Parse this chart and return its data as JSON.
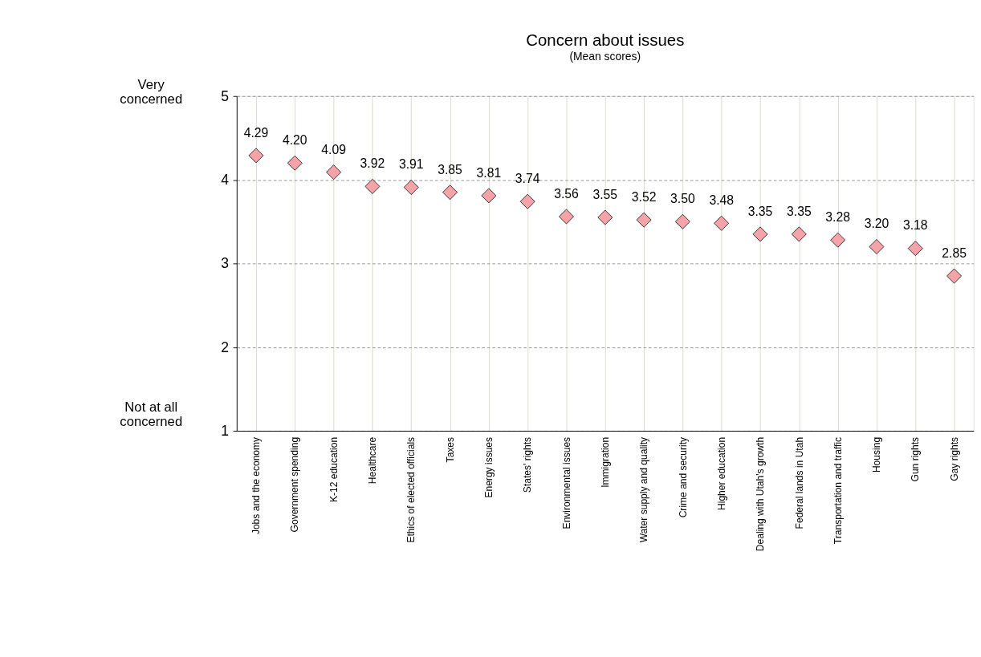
{
  "chart_data": {
    "type": "scatter",
    "title": "Concern about issues",
    "subtitle": "(Mean scores)",
    "categories": [
      "Jobs and the economy",
      "Government spending",
      "K-12 education",
      "Healthcare",
      "Ethics of elected officials",
      "Taxes",
      "Energy issues",
      "States' rights",
      "Environmental issues",
      "Immigration",
      "Water supply and quality",
      "Crime and security",
      "Higher education",
      "Dealing with Utah's growth",
      "Federal lands in Utah",
      "Transportation and traffic",
      "Housing",
      "Gun rights",
      "Gay rights"
    ],
    "values": [
      4.29,
      4.2,
      4.09,
      3.92,
      3.91,
      3.85,
      3.81,
      3.74,
      3.56,
      3.55,
      3.52,
      3.5,
      3.48,
      3.35,
      3.35,
      3.28,
      3.2,
      3.18,
      2.85
    ],
    "value_labels": [
      "4.29",
      "4.20",
      "4.09",
      "3.92",
      "3.91",
      "3.85",
      "3.81",
      "3.74",
      "3.56",
      "3.55",
      "3.52",
      "3.50",
      "3.48",
      "3.35",
      "3.35",
      "3.28",
      "3.20",
      "3.18",
      "2.85"
    ],
    "color": "#f4a4a8",
    "marker": "diamond",
    "ylim": [
      1,
      5
    ],
    "yticks": [
      1,
      2,
      3,
      4,
      5
    ],
    "grid": true,
    "annotations": [
      "Very\nconcerned",
      "Not at all\nconcerned"
    ]
  }
}
